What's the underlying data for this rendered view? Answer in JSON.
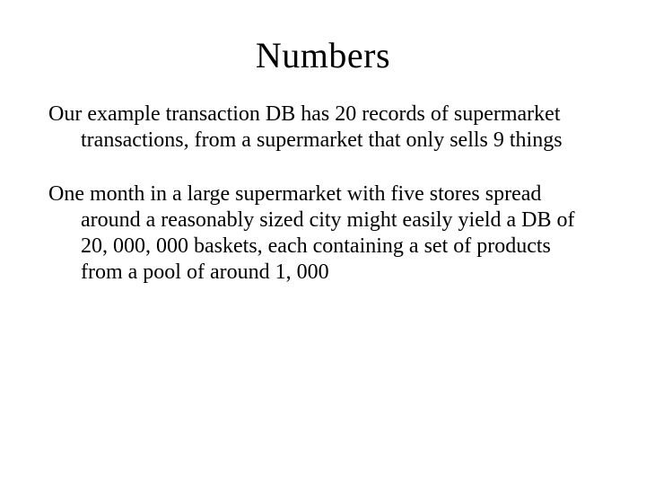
{
  "slide": {
    "title": "Numbers",
    "paragraphs": [
      "Our example transaction DB has 20 records of supermarket transactions, from a supermarket that only sells 9 things",
      "One month in a large supermarket with five stores spread around a reasonably sized city might easily yield a DB of 20, 000, 000 baskets, each containing a set of products from a pool of around 1, 000"
    ],
    "background_color": "#ffffff",
    "text_color": "#000000",
    "title_fontsize": 40,
    "body_fontsize": 24,
    "font_family": "Times New Roman"
  }
}
